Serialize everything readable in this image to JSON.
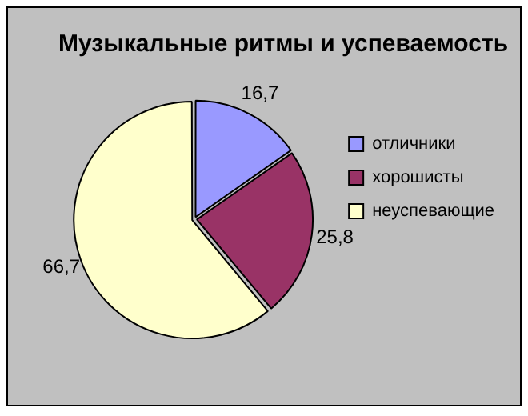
{
  "chart_data": {
    "type": "pie",
    "title": "Музыкальные ритмы и успеваемость",
    "categories": [
      "отличники",
      "хорошисты",
      "неуспевающие"
    ],
    "values": [
      16.7,
      25.8,
      66.7
    ],
    "value_labels": [
      "16,7",
      "25,8",
      "66,7"
    ],
    "colors": [
      "#9999ff",
      "#993366",
      "#ffffcc"
    ],
    "legend": "right"
  }
}
